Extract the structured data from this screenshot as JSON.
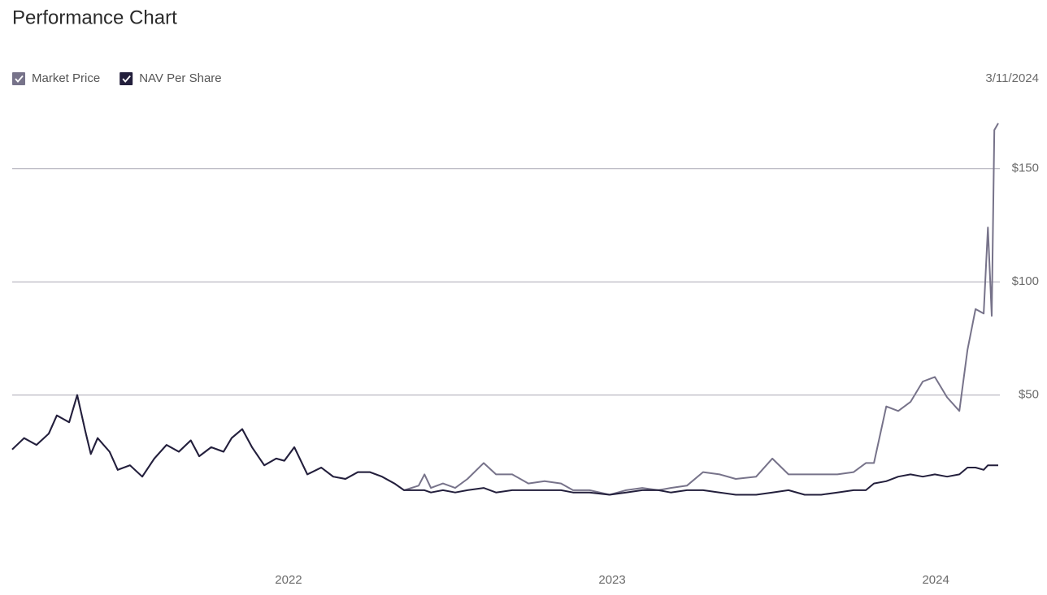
{
  "chart_data": {
    "type": "line",
    "title": "Performance Chart",
    "as_of": "3/11/2024",
    "x": [
      2021.146,
      2021.183,
      2021.221,
      2021.259,
      2021.284,
      2021.322,
      2021.347,
      2021.372,
      2021.389,
      2021.41,
      2021.447,
      2021.472,
      2021.51,
      2021.548,
      2021.585,
      2021.623,
      2021.661,
      2021.698,
      2021.724,
      2021.761,
      2021.799,
      2021.824,
      2021.857,
      2021.887,
      2021.925,
      2021.962,
      2021.987,
      2022.018,
      2022.058,
      2022.101,
      2022.138,
      2022.176,
      2022.214,
      2022.251,
      2022.289,
      2022.327,
      2022.357,
      2022.402,
      2022.42,
      2022.44,
      2022.477,
      2022.515,
      2022.553,
      2022.603,
      2022.641,
      2022.691,
      2022.741,
      2022.791,
      2022.842,
      2022.879,
      2022.93,
      2022.992,
      2023.043,
      2023.093,
      2023.143,
      2023.181,
      2023.231,
      2023.281,
      2023.332,
      2023.382,
      2023.445,
      2023.495,
      2023.545,
      2023.595,
      2023.646,
      2023.696,
      2023.746,
      2023.784,
      2023.809,
      2023.847,
      2023.884,
      2023.922,
      2023.96,
      2023.997,
      2024.035,
      2024.073,
      2024.098,
      2024.123,
      2024.148,
      2024.161,
      2024.173,
      2024.181,
      2024.193
    ],
    "series": [
      {
        "name": "Market Price",
        "color": "#77738a",
        "values": [
          26,
          31,
          28,
          33,
          41,
          38,
          50,
          34,
          24,
          31,
          25,
          17,
          19,
          14,
          22,
          28,
          25,
          30,
          23,
          27,
          25,
          31,
          35,
          27,
          19,
          22,
          21,
          27,
          15,
          18,
          14,
          13,
          16,
          16,
          14,
          11,
          8,
          10,
          15,
          9,
          11,
          9,
          13,
          20,
          15,
          15,
          11,
          12,
          11,
          8,
          8,
          6,
          8,
          9,
          8,
          9,
          10,
          16,
          15,
          13,
          14,
          22,
          15,
          15,
          15,
          15,
          16,
          20,
          20,
          45,
          43,
          47,
          56,
          58,
          49,
          43,
          70,
          88,
          86,
          124,
          85,
          167,
          170
        ]
      },
      {
        "name": "NAV Per Share",
        "color": "#231f3c",
        "values": [
          26,
          31,
          28,
          33,
          41,
          38,
          50,
          34,
          24,
          31,
          25,
          17,
          19,
          14,
          22,
          28,
          25,
          30,
          23,
          27,
          25,
          31,
          35,
          27,
          19,
          22,
          21,
          27,
          15,
          18,
          14,
          13,
          16,
          16,
          14,
          11,
          8,
          8,
          8,
          7,
          8,
          7,
          8,
          9,
          7,
          8,
          8,
          8,
          8,
          7,
          7,
          6,
          7,
          8,
          8,
          7,
          8,
          8,
          7,
          6,
          6,
          7,
          8,
          6,
          6,
          7,
          8,
          8,
          11,
          12,
          14,
          15,
          14,
          15,
          14,
          15,
          18,
          18,
          17,
          19,
          19,
          19,
          19
        ]
      }
    ],
    "xlim": [
      2021.146,
      2024.193
    ],
    "xticks": [
      2022,
      2023,
      2024
    ],
    "ylim": [
      -25,
      180
    ],
    "yticks": [
      {
        "value": 50,
        "label": "$50"
      },
      {
        "value": 100,
        "label": "$100"
      },
      {
        "value": 150,
        "label": "$150"
      }
    ],
    "grid": true
  }
}
